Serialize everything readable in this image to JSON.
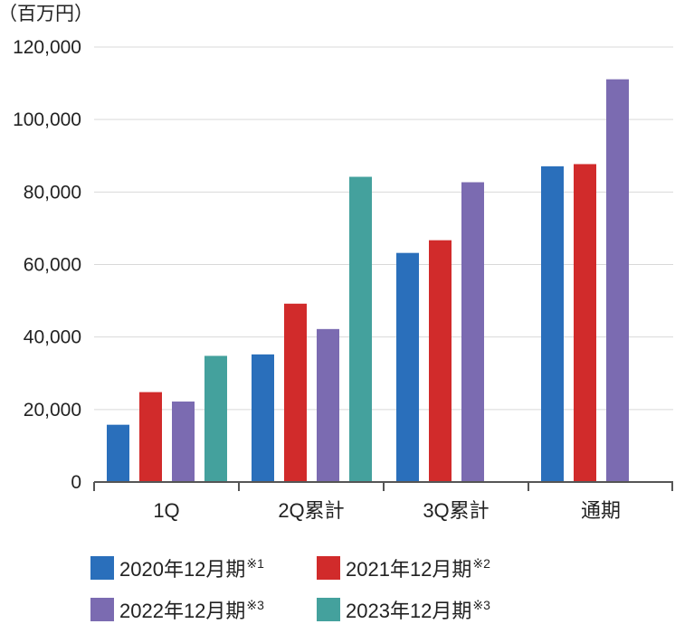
{
  "chart_data": {
    "type": "bar",
    "unit_label": "（百万円）",
    "categories": [
      "1Q",
      "2Q累計",
      "3Q累計",
      "通期"
    ],
    "ylim": [
      0,
      120000
    ],
    "yticks": [
      0,
      20000,
      40000,
      60000,
      80000,
      100000,
      120000
    ],
    "ytick_labels": [
      "0",
      "20,000",
      "40,000",
      "60,000",
      "80,000",
      "100,000",
      "120,000"
    ],
    "grid": true,
    "legend_position": "bottom",
    "series": [
      {
        "name": "2020年12月期",
        "note": "※1",
        "color": "#2a6fbb",
        "values": [
          15800,
          35200,
          63200,
          87100
        ]
      },
      {
        "name": "2021年12月期",
        "note": "※2",
        "color": "#d12b2b",
        "values": [
          24800,
          49200,
          66700,
          87700
        ]
      },
      {
        "name": "2022年12月期",
        "note": "※3",
        "color": "#7b6bb1",
        "values": [
          22200,
          42200,
          82700,
          111100
        ]
      },
      {
        "name": "2023年12月期",
        "note": "※3",
        "color": "#44a19d",
        "values": [
          34800,
          84200,
          null,
          null
        ]
      }
    ]
  }
}
